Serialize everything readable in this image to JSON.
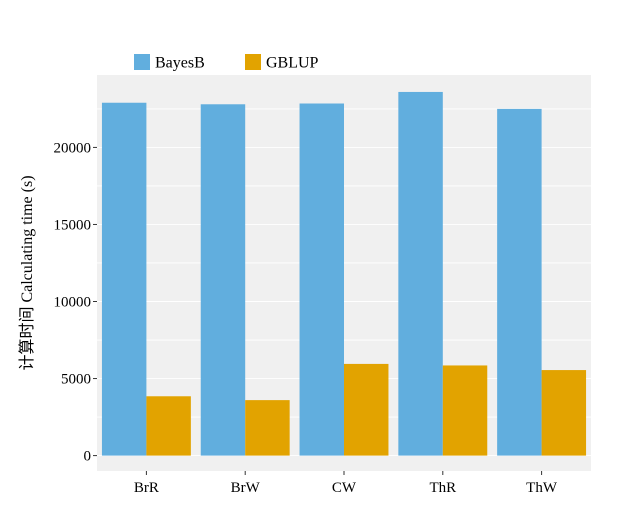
{
  "chart_data": {
    "type": "bar",
    "categories": [
      "BrR",
      "BrW",
      "CW",
      "ThR",
      "ThW"
    ],
    "series": [
      {
        "name": "BayesB",
        "color": "#61AEDE",
        "values": [
          22900,
          22800,
          22850,
          23600,
          22500
        ]
      },
      {
        "name": "GBLUP",
        "color": "#E2A300",
        "values": [
          3850,
          3600,
          5950,
          5850,
          5550
        ]
      }
    ],
    "ylabel": "计算时间 Calculating time (s)",
    "xlabel": "",
    "ylim": [
      -1000,
      24700
    ],
    "yticks": [
      0,
      5000,
      10000,
      15000,
      20000
    ],
    "ytick_labels": [
      "0",
      "5000",
      "10000",
      "15000",
      "20000"
    ],
    "grid": true,
    "legend_position": "top-left",
    "panel_background": "#F0F0F0"
  }
}
